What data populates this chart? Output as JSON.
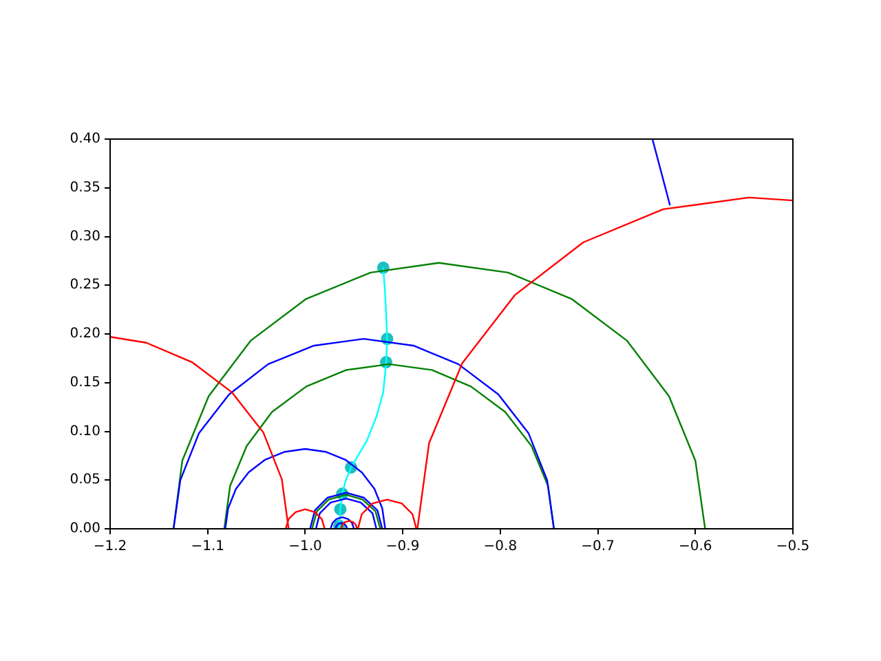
{
  "chart_data": {
    "type": "line",
    "xlim": [
      -1.2,
      -0.5
    ],
    "ylim": [
      0,
      0.4
    ],
    "xticks": [
      {
        "value": -1.2,
        "label": "−1.2"
      },
      {
        "value": -1.1,
        "label": "−1.1"
      },
      {
        "value": -1.0,
        "label": "−1.0"
      },
      {
        "value": -0.9,
        "label": "−0.9"
      },
      {
        "value": -0.8,
        "label": "−0.8"
      },
      {
        "value": -0.7,
        "label": "−0.7"
      },
      {
        "value": -0.6,
        "label": "−0.6"
      },
      {
        "value": -0.5,
        "label": "−0.5"
      }
    ],
    "yticks": [
      {
        "value": 0,
        "label": "0.00"
      },
      {
        "value": 0.05,
        "label": "0.05"
      },
      {
        "value": 0.1,
        "label": "0.10"
      },
      {
        "value": 0.15,
        "label": "0.15"
      },
      {
        "value": 0.2,
        "label": "0.20"
      },
      {
        "value": 0.25,
        "label": "0.25"
      },
      {
        "value": 0.3,
        "label": "0.30"
      },
      {
        "value": 0.35,
        "label": "0.35"
      },
      {
        "value": 0.4,
        "label": "0.40"
      }
    ],
    "grid": false,
    "legend": false,
    "marker": "none",
    "line_style": "solid",
    "series": [
      {
        "color": "#ff0000",
        "x": [
          -1.2,
          -1.163,
          -1.116,
          -1.075,
          -1.043,
          -1.024,
          -1.017
        ],
        "values": [
          0.197,
          0.191,
          0.171,
          0.14,
          0.099,
          0.051,
          0
        ]
      },
      {
        "color": "#ff0000",
        "x": [
          -0.885,
          -0.873,
          -0.839,
          -0.785,
          -0.715,
          -0.633,
          -0.545,
          -0.5
        ],
        "values": [
          0,
          0.088,
          0.17,
          0.24,
          0.294,
          0.328,
          0.34,
          0.337
        ]
      },
      {
        "color": "#ff0000",
        "x": [
          -1.02,
          -1.017,
          -1.01,
          -1.0,
          -0.99,
          -0.983,
          -0.98
        ],
        "values": [
          0,
          0.01,
          0.017,
          0.02,
          0.017,
          0.01,
          0
        ]
      },
      {
        "color": "#ff0000",
        "x": [
          -0.946,
          -0.942,
          -0.931,
          -0.916,
          -0.901,
          -0.89,
          -0.886
        ],
        "values": [
          0,
          0.015,
          0.026,
          0.03,
          0.026,
          0.015,
          0
        ]
      },
      {
        "color": "#ff0000",
        "x": [
          -0.963,
          -0.962,
          -0.959,
          -0.955,
          -0.951,
          -0.948,
          -0.947
        ],
        "values": [
          0,
          0.004,
          0.007,
          0.008,
          0.007,
          0.004,
          0
        ]
      },
      {
        "color": "#0000ff",
        "x": [
          -1.135,
          -1.128,
          -1.109,
          -1.078,
          -1.038,
          -0.991,
          -0.94,
          -0.889,
          -0.843,
          -0.802,
          -0.771,
          -0.752,
          -0.745
        ],
        "values": [
          0,
          0.05,
          0.098,
          0.138,
          0.169,
          0.188,
          0.195,
          0.188,
          0.169,
          0.138,
          0.098,
          0.05,
          0
        ]
      },
      {
        "color": "#0000ff",
        "x": [
          -1.082,
          -1.079,
          -1.071,
          -1.058,
          -1.041,
          -1.021,
          -1.0,
          -0.979,
          -0.959,
          -0.942,
          -0.929,
          -0.921,
          -0.918
        ],
        "values": [
          0,
          0.021,
          0.041,
          0.058,
          0.071,
          0.079,
          0.082,
          0.079,
          0.071,
          0.058,
          0.041,
          0.021,
          0
        ]
      },
      {
        "color": "#0000ff",
        "x": [
          -0.995,
          -0.99,
          -0.977,
          -0.958,
          -0.94,
          -0.926,
          -0.921
        ],
        "values": [
          0,
          0.019,
          0.032,
          0.037,
          0.032,
          0.019,
          0
        ]
      },
      {
        "color": "#0000ff",
        "x": [
          -0.989,
          -0.985,
          -0.974,
          -0.958,
          -0.943,
          -0.931,
          -0.927
        ],
        "values": [
          0,
          0.016,
          0.027,
          0.031,
          0.027,
          0.016,
          0
        ]
      },
      {
        "color": "#0000ff",
        "x": [
          -0.974,
          -0.972,
          -0.968,
          -0.962,
          -0.956,
          -0.952,
          -0.95
        ],
        "values": [
          0,
          0.006,
          0.01,
          0.012,
          0.01,
          0.006,
          0
        ]
      },
      {
        "color": "#0000ff",
        "x": [
          -0.969,
          -0.968,
          -0.966,
          -0.963,
          -0.96,
          -0.958,
          -0.957
        ],
        "values": [
          0,
          0.003,
          0.005,
          0.006,
          0.005,
          0.003,
          0
        ]
      },
      {
        "color": "#0000ff",
        "x": [
          -0.644,
          -0.626
        ],
        "values": [
          0.4,
          0.332
        ]
      },
      {
        "color": "#008000",
        "x": [
          -1.135,
          -1.126,
          -1.099,
          -1.056,
          -0.999,
          -0.933,
          -0.863,
          -0.792,
          -0.727,
          -0.67,
          -0.627,
          -0.6,
          -0.59
        ],
        "values": [
          0,
          0.07,
          0.136,
          0.193,
          0.236,
          0.263,
          0.273,
          0.263,
          0.236,
          0.193,
          0.136,
          0.07,
          0
        ]
      },
      {
        "color": "#008000",
        "x": [
          -1.083,
          -1.077,
          -1.06,
          -1.034,
          -0.999,
          -0.958,
          -0.914,
          -0.87,
          -0.83,
          -0.795,
          -0.768,
          -0.751,
          -0.745
        ],
        "values": [
          0,
          0.044,
          0.085,
          0.12,
          0.146,
          0.163,
          0.169,
          0.163,
          0.146,
          0.12,
          0.085,
          0.044,
          0
        ]
      },
      {
        "color": "#008000",
        "x": [
          -0.993,
          -0.988,
          -0.976,
          -0.958,
          -0.941,
          -0.928,
          -0.923
        ],
        "values": [
          0,
          0.018,
          0.03,
          0.035,
          0.03,
          0.018,
          0
        ]
      },
      {
        "color": "#00ffff",
        "x": [
          -0.92,
          -0.918,
          -0.917,
          -0.916,
          -0.917,
          -0.92,
          -0.927,
          -0.937,
          -0.953,
          -0.959,
          -0.962,
          -0.964,
          -0.965,
          -0.965
        ],
        "values": [
          0.268,
          0.24,
          0.22,
          0.195,
          0.171,
          0.14,
          0.115,
          0.09,
          0.063,
          0.048,
          0.036,
          0.02,
          0.005,
          0
        ]
      },
      {
        "type": "scatter",
        "color": "#1fbfbf",
        "marker": "circle",
        "x": [
          -0.92,
          -0.916,
          -0.917,
          -0.953,
          -0.962,
          -0.964,
          -0.965
        ],
        "values": [
          0.268,
          0.195,
          0.171,
          0.063,
          0.036,
          0.02,
          0.003
        ]
      }
    ]
  }
}
